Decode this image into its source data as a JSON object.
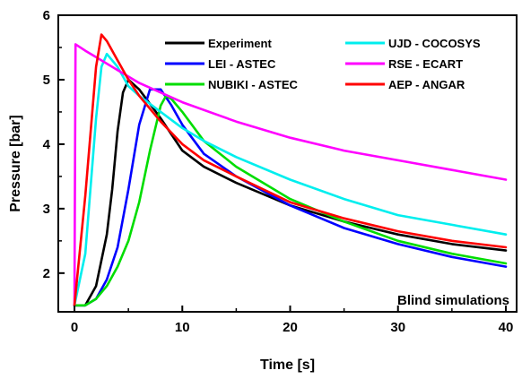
{
  "chart_data": {
    "type": "line",
    "xlabel": "Time [s]",
    "ylabel": "Pressure [bar]",
    "xlim": [
      -1.5,
      41
    ],
    "ylim": [
      1.4,
      6
    ],
    "xticks": [
      "0",
      "10",
      "20",
      "30",
      "40"
    ],
    "yticks": [
      "2",
      "3",
      "4",
      "5",
      "6"
    ],
    "annotation": "Blind simulations",
    "legend_position": "top",
    "series": [
      {
        "name": "Experiment",
        "color": "#000000",
        "x": [
          0,
          1,
          2,
          3,
          3.5,
          4,
          4.5,
          5,
          6,
          8,
          10,
          12,
          15,
          20,
          25,
          30,
          35,
          40
        ],
        "y": [
          1.5,
          1.5,
          1.8,
          2.6,
          3.3,
          4.2,
          4.8,
          5.0,
          4.85,
          4.4,
          3.9,
          3.65,
          3.4,
          3.05,
          2.8,
          2.6,
          2.45,
          2.35
        ]
      },
      {
        "name": "LEI - ASTEC",
        "color": "#0000ff",
        "x": [
          0,
          1,
          2,
          3,
          4,
          5,
          6,
          7,
          8,
          9,
          10,
          12,
          15,
          20,
          25,
          30,
          35,
          40
        ],
        "y": [
          1.5,
          1.5,
          1.6,
          1.9,
          2.4,
          3.3,
          4.3,
          4.85,
          4.85,
          4.6,
          4.3,
          3.85,
          3.5,
          3.05,
          2.7,
          2.45,
          2.25,
          2.1
        ]
      },
      {
        "name": "NUBIKI - ASTEC",
        "color": "#00dd00",
        "x": [
          0,
          1,
          2,
          3,
          4,
          5,
          6,
          7,
          8,
          8.5,
          9,
          10,
          12,
          15,
          20,
          25,
          30,
          35,
          40
        ],
        "y": [
          1.5,
          1.5,
          1.6,
          1.8,
          2.1,
          2.5,
          3.1,
          3.9,
          4.6,
          4.75,
          4.7,
          4.5,
          4.05,
          3.65,
          3.15,
          2.8,
          2.5,
          2.3,
          2.15
        ]
      },
      {
        "name": "UJD - COCOSYS",
        "color": "#00eeee",
        "x": [
          0,
          1,
          2,
          2.5,
          3,
          4,
          5,
          6,
          8,
          10,
          12,
          15,
          20,
          25,
          30,
          35,
          40
        ],
        "y": [
          1.5,
          2.3,
          4.4,
          5.2,
          5.4,
          5.2,
          4.9,
          4.75,
          4.5,
          4.25,
          4.05,
          3.8,
          3.45,
          3.15,
          2.9,
          2.75,
          2.6
        ]
      },
      {
        "name": "RSE - ECART",
        "color": "#ff00ff",
        "x": [
          0,
          0.1,
          1,
          2,
          4,
          6,
          8,
          10,
          15,
          20,
          25,
          30,
          35,
          40
        ],
        "y": [
          1.5,
          5.55,
          5.45,
          5.35,
          5.15,
          4.95,
          4.8,
          4.65,
          4.35,
          4.1,
          3.9,
          3.75,
          3.6,
          3.45
        ]
      },
      {
        "name": "AEP - ANGAR",
        "color": "#ff0000",
        "x": [
          0,
          1,
          2,
          2.5,
          3,
          4,
          5,
          6,
          8,
          10,
          12,
          15,
          20,
          25,
          30,
          35,
          40
        ],
        "y": [
          1.5,
          3.2,
          5.2,
          5.7,
          5.6,
          5.3,
          5.0,
          4.75,
          4.35,
          4.0,
          3.75,
          3.5,
          3.1,
          2.85,
          2.65,
          2.5,
          2.4
        ]
      }
    ]
  }
}
